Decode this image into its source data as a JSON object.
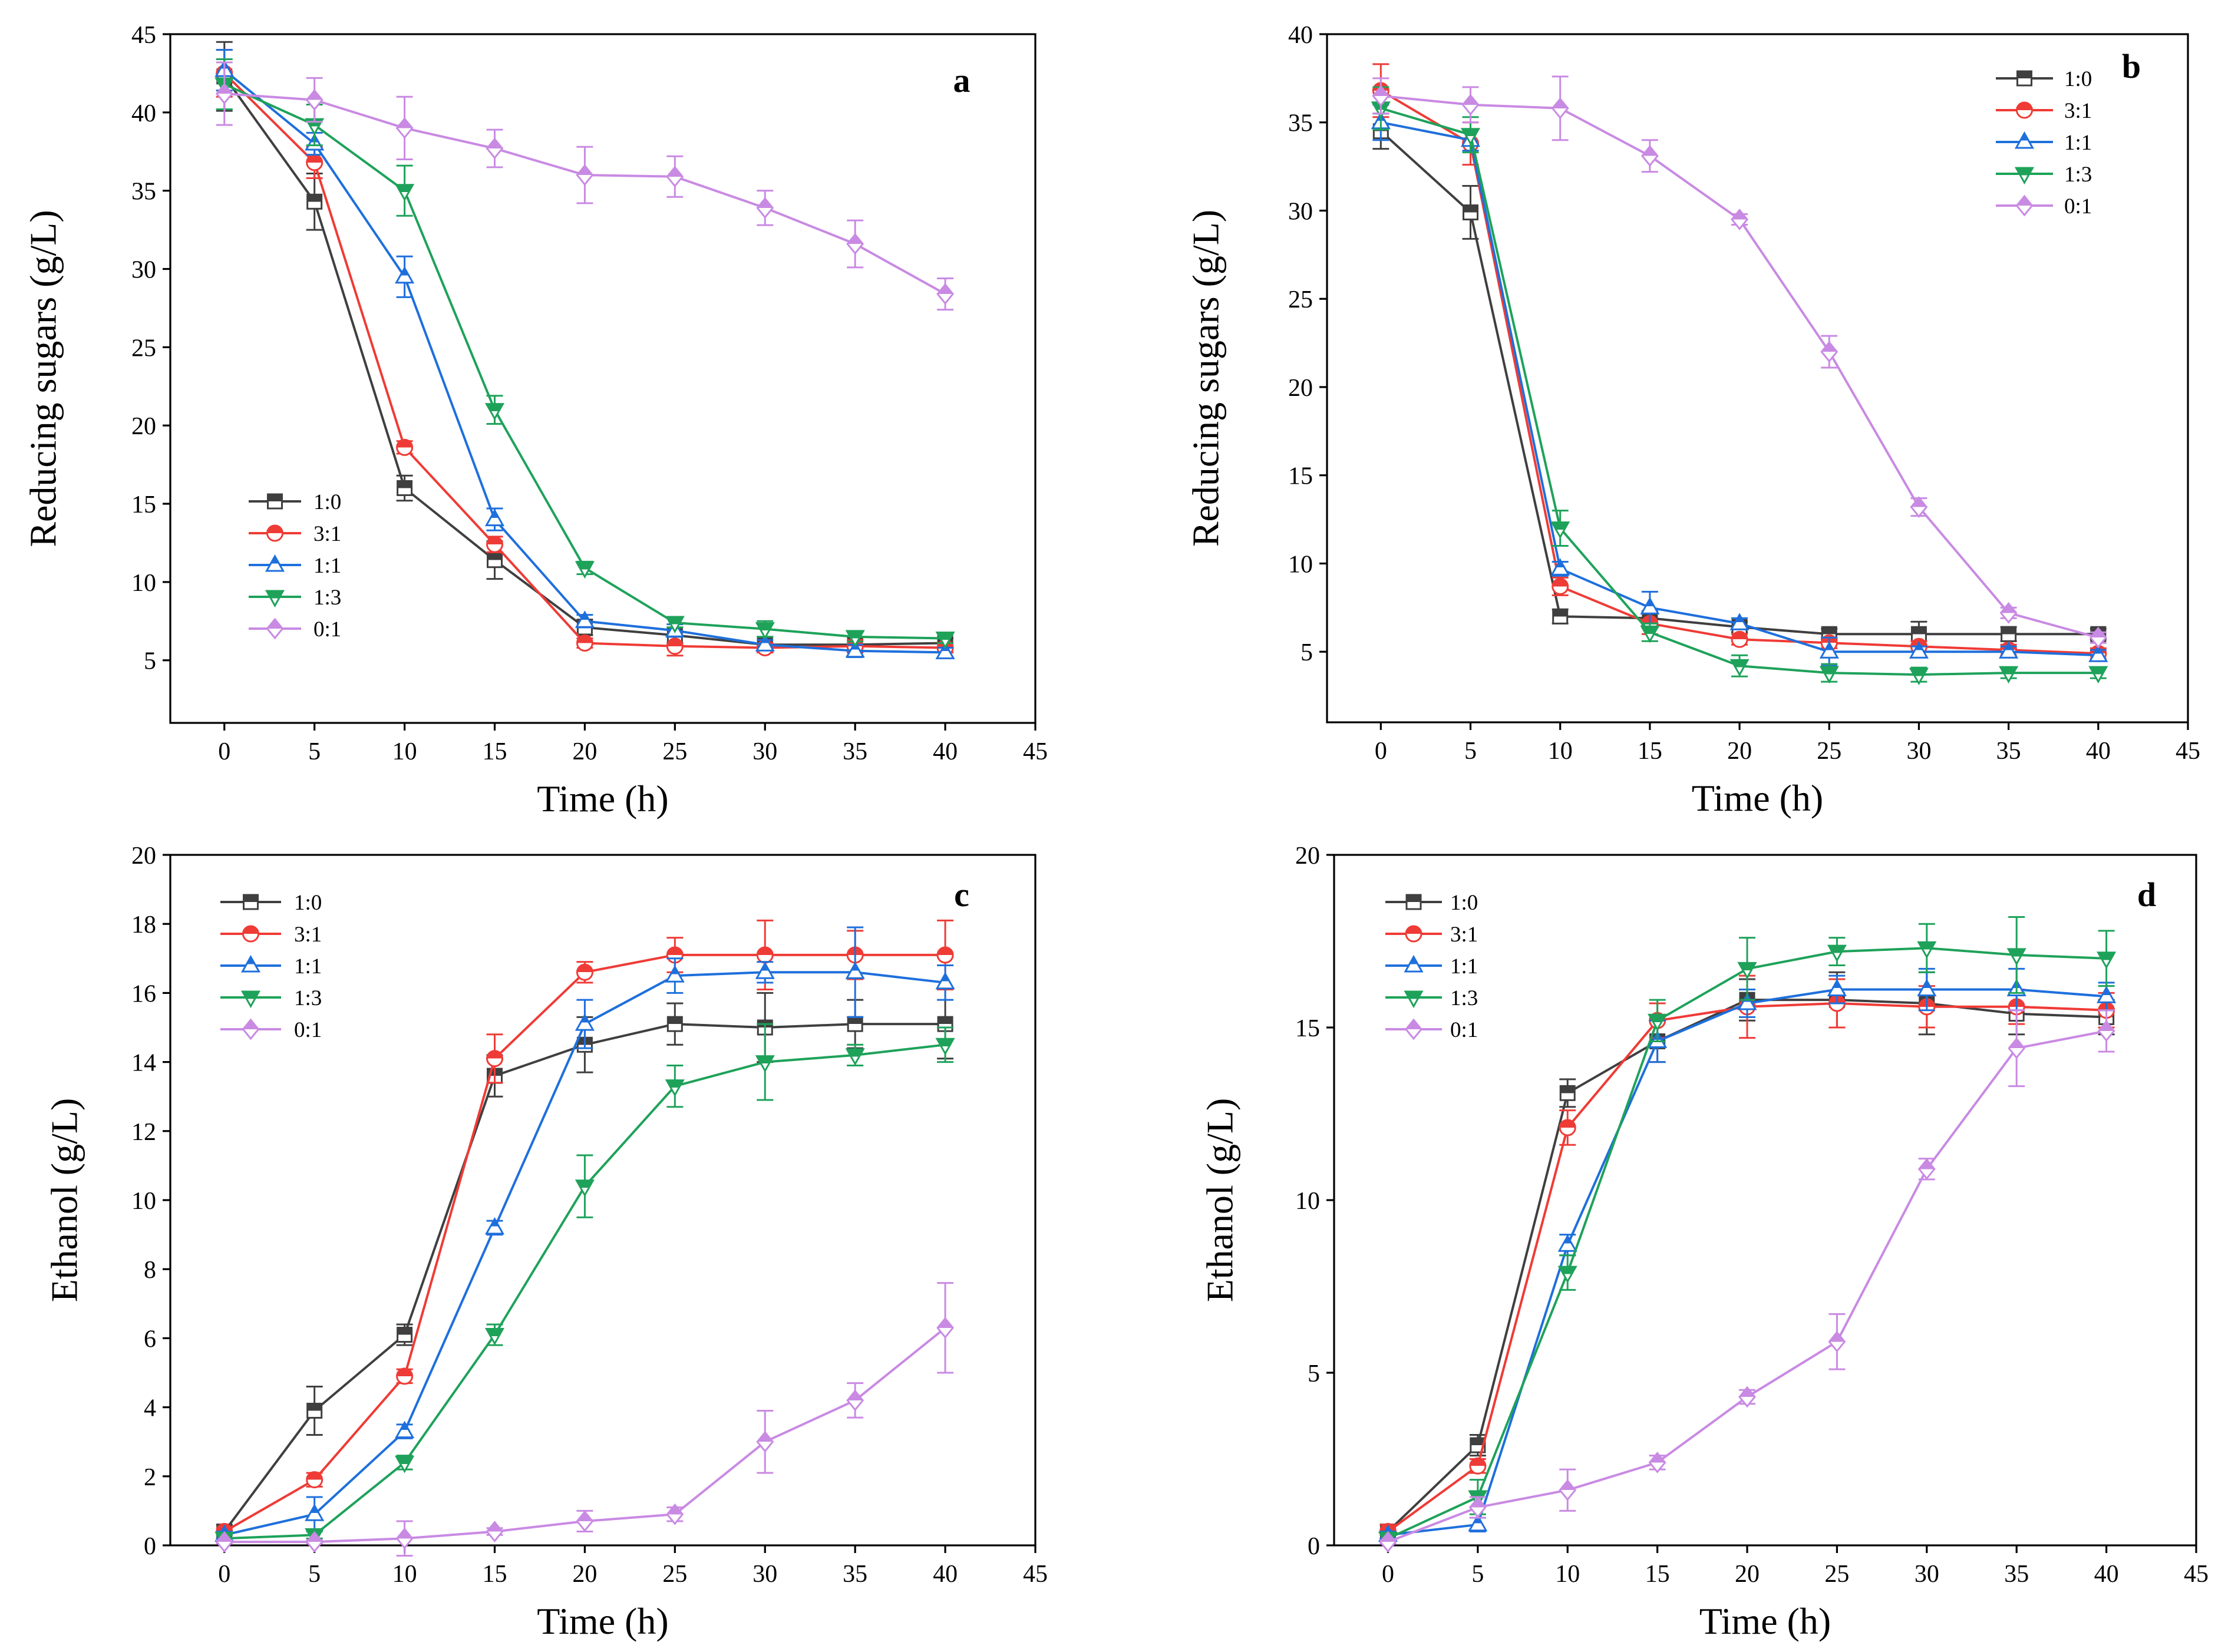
{
  "chart_data": [
    {
      "panel": "a",
      "type": "line",
      "xlabel": "Time (h)",
      "ylabel": "Reducing sugars (g/L)",
      "xlim": [
        -3,
        45
      ],
      "ylim": [
        1,
        45
      ],
      "xticks": [
        0,
        5,
        10,
        15,
        20,
        25,
        30,
        35,
        40,
        45
      ],
      "yticks": [
        5,
        10,
        15,
        20,
        25,
        30,
        35,
        40,
        45
      ],
      "grid": false,
      "legend_position": "bottom-left",
      "x": [
        0,
        5,
        10,
        15,
        20,
        25,
        30,
        35,
        40
      ],
      "series": [
        {
          "name": "1:0",
          "color": "#3f3f3f",
          "marker": "square",
          "values": [
            42.3,
            34.3,
            16.0,
            11.4,
            7.1,
            6.6,
            6.0,
            6.0,
            6.1
          ],
          "errors": [
            2.2,
            1.8,
            0.8,
            1.2,
            0.5,
            0.5,
            0.5,
            0.5,
            0.3
          ]
        },
        {
          "name": "3:1",
          "color": "#ef3b36",
          "marker": "circle",
          "values": [
            42.5,
            36.8,
            18.6,
            12.4,
            6.1,
            5.9,
            5.8,
            5.9,
            5.8
          ],
          "errors": [
            1.5,
            1.0,
            0.4,
            0.5,
            0.3,
            0.6,
            0.3,
            0.4,
            0.3
          ]
        },
        {
          "name": "1:1",
          "color": "#1e6fdc",
          "marker": "triangle-up",
          "values": [
            42.7,
            38.0,
            29.5,
            14.0,
            7.5,
            6.9,
            6.0,
            5.6,
            5.5
          ],
          "errors": [
            1.3,
            0.7,
            1.3,
            0.7,
            0.4,
            0.4,
            0.3,
            0.4,
            0.3
          ]
        },
        {
          "name": "1:3",
          "color": "#1ea25a",
          "marker": "triangle-down",
          "values": [
            41.8,
            39.2,
            35.0,
            21.0,
            10.9,
            7.4,
            7.0,
            6.5,
            6.4
          ],
          "errors": [
            1.6,
            1.3,
            1.6,
            0.9,
            0.4,
            0.3,
            0.5,
            0.3,
            0.3
          ]
        },
        {
          "name": "0:1",
          "color": "#c98ae3",
          "marker": "diamond",
          "values": [
            41.2,
            40.8,
            39.0,
            37.7,
            36.0,
            35.9,
            33.9,
            31.6,
            28.4
          ],
          "errors": [
            2.0,
            1.4,
            2.0,
            1.2,
            1.8,
            1.3,
            1.1,
            1.5,
            1.0
          ]
        }
      ]
    },
    {
      "panel": "b",
      "type": "line",
      "xlabel": "Time (h)",
      "ylabel": "Reducing sugars (g/L)",
      "xlim": [
        -3,
        45
      ],
      "ylim": [
        1,
        40
      ],
      "xticks": [
        0,
        5,
        10,
        15,
        20,
        25,
        30,
        35,
        40,
        45
      ],
      "yticks": [
        5,
        10,
        15,
        20,
        25,
        30,
        35,
        40
      ],
      "grid": false,
      "legend_position": "top-right",
      "x": [
        0,
        5,
        10,
        15,
        20,
        25,
        30,
        35,
        40
      ],
      "series": [
        {
          "name": "1:0",
          "color": "#3f3f3f",
          "marker": "square",
          "values": [
            34.5,
            29.9,
            7.0,
            6.9,
            6.4,
            6.0,
            6.0,
            6.0,
            6.0
          ],
          "errors": [
            1.0,
            1.5,
            0.4,
            0.4,
            0.3,
            0.3,
            0.7,
            0.4,
            0.3
          ]
        },
        {
          "name": "3:1",
          "color": "#ef3b36",
          "marker": "circle",
          "values": [
            36.8,
            33.8,
            8.7,
            6.6,
            5.7,
            5.5,
            5.3,
            5.1,
            4.9
          ],
          "errors": [
            1.5,
            1.2,
            0.5,
            0.6,
            0.3,
            0.3,
            0.3,
            0.3,
            0.3
          ]
        },
        {
          "name": "1:1",
          "color": "#1e6fdc",
          "marker": "triangle-up",
          "values": [
            35.0,
            34.0,
            9.7,
            7.5,
            6.6,
            5.0,
            5.0,
            5.0,
            4.8
          ],
          "errors": [
            1.0,
            0.6,
            0.4,
            0.9,
            0.3,
            0.8,
            0.3,
            0.3,
            0.3
          ]
        },
        {
          "name": "1:3",
          "color": "#1ea25a",
          "marker": "triangle-down",
          "values": [
            35.8,
            34.3,
            12.0,
            6.1,
            4.2,
            3.8,
            3.7,
            3.8,
            3.8
          ],
          "errors": [
            1.2,
            1.0,
            1.0,
            0.5,
            0.6,
            0.5,
            0.4,
            0.3,
            0.3
          ]
        },
        {
          "name": "0:1",
          "color": "#c98ae3",
          "marker": "diamond",
          "values": [
            36.5,
            36.0,
            35.8,
            33.1,
            29.5,
            22.0,
            13.2,
            7.2,
            5.8
          ],
          "errors": [
            1.0,
            1.0,
            1.8,
            0.9,
            0.3,
            0.9,
            0.5,
            0.3,
            0.3
          ]
        }
      ]
    },
    {
      "panel": "c",
      "type": "line",
      "xlabel": "Time (h)",
      "ylabel": "Ethanol (g/L)",
      "xlim": [
        -3,
        45
      ],
      "ylim": [
        0,
        20
      ],
      "xticks": [
        0,
        5,
        10,
        15,
        20,
        25,
        30,
        35,
        40,
        45
      ],
      "yticks": [
        0,
        2,
        4,
        6,
        8,
        10,
        12,
        14,
        16,
        18,
        20
      ],
      "grid": false,
      "legend_position": "top-left",
      "x": [
        0,
        5,
        10,
        15,
        20,
        25,
        30,
        35,
        40
      ],
      "series": [
        {
          "name": "1:0",
          "color": "#3f3f3f",
          "marker": "square",
          "values": [
            0.4,
            3.9,
            6.1,
            13.6,
            14.5,
            15.1,
            15.0,
            15.1,
            15.1
          ],
          "errors": [
            0.2,
            0.7,
            0.3,
            0.6,
            0.8,
            0.6,
            1.0,
            0.7,
            1.0
          ]
        },
        {
          "name": "3:1",
          "color": "#ef3b36",
          "marker": "circle",
          "values": [
            0.4,
            1.9,
            4.9,
            14.1,
            16.6,
            17.1,
            17.1,
            17.1,
            17.1
          ],
          "errors": [
            0.1,
            0.2,
            0.2,
            0.7,
            0.3,
            0.5,
            1.0,
            0.7,
            1.0
          ]
        },
        {
          "name": "1:1",
          "color": "#1e6fdc",
          "marker": "triangle-up",
          "values": [
            0.3,
            0.9,
            3.3,
            9.2,
            15.1,
            16.5,
            16.6,
            16.6,
            16.3
          ],
          "errors": [
            0.1,
            0.5,
            0.2,
            0.2,
            0.7,
            0.5,
            0.3,
            1.3,
            0.5
          ]
        },
        {
          "name": "1:3",
          "color": "#1ea25a",
          "marker": "triangle-down",
          "values": [
            0.2,
            0.3,
            2.4,
            6.1,
            10.4,
            13.3,
            14.0,
            14.2,
            14.5
          ],
          "errors": [
            0.1,
            0.1,
            0.2,
            0.3,
            0.9,
            0.6,
            1.1,
            0.3,
            0.5
          ]
        },
        {
          "name": "0:1",
          "color": "#c98ae3",
          "marker": "diamond",
          "values": [
            0.1,
            0.1,
            0.2,
            0.4,
            0.7,
            0.9,
            3.0,
            4.2,
            6.3
          ],
          "errors": [
            0.05,
            0.05,
            0.5,
            0.1,
            0.3,
            0.2,
            0.9,
            0.5,
            1.3
          ]
        }
      ]
    },
    {
      "panel": "d",
      "type": "line",
      "xlabel": "Time (h)",
      "ylabel": "Ethanol (g/L)",
      "xlim": [
        -3,
        45
      ],
      "ylim": [
        0,
        20
      ],
      "xticks": [
        0,
        5,
        10,
        15,
        20,
        25,
        30,
        35,
        40,
        45
      ],
      "yticks": [
        0,
        5,
        10,
        15,
        20
      ],
      "grid": false,
      "legend_position": "top-left",
      "x": [
        0,
        5,
        10,
        15,
        20,
        25,
        30,
        35,
        40
      ],
      "series": [
        {
          "name": "1:0",
          "color": "#3f3f3f",
          "marker": "square",
          "values": [
            0.4,
            2.9,
            13.1,
            14.6,
            15.8,
            15.8,
            15.7,
            15.4,
            15.3
          ],
          "errors": [
            0.2,
            0.3,
            0.4,
            0.6,
            0.6,
            0.8,
            0.9,
            0.6,
            0.5
          ]
        },
        {
          "name": "3:1",
          "color": "#ef3b36",
          "marker": "circle",
          "values": [
            0.4,
            2.3,
            12.1,
            15.2,
            15.6,
            15.7,
            15.6,
            15.6,
            15.5
          ],
          "errors": [
            0.2,
            0.2,
            0.5,
            0.5,
            0.9,
            0.7,
            0.6,
            0.5,
            0.5
          ]
        },
        {
          "name": "1:1",
          "color": "#1e6fdc",
          "marker": "triangle-up",
          "values": [
            0.3,
            0.6,
            8.7,
            14.6,
            15.7,
            16.1,
            16.1,
            16.1,
            15.9
          ],
          "errors": [
            0.1,
            0.2,
            0.3,
            0.6,
            0.4,
            0.4,
            0.6,
            0.6,
            0.4
          ]
        },
        {
          "name": "1:3",
          "color": "#1ea25a",
          "marker": "triangle-down",
          "values": [
            0.2,
            1.4,
            7.9,
            15.2,
            16.7,
            17.2,
            17.3,
            17.1,
            17.0
          ],
          "errors": [
            0.1,
            0.5,
            0.5,
            0.6,
            0.9,
            0.4,
            0.7,
            1.1,
            0.8
          ]
        },
        {
          "name": "0:1",
          "color": "#c98ae3",
          "marker": "diamond",
          "values": [
            0.1,
            1.1,
            1.6,
            2.4,
            4.3,
            5.9,
            10.9,
            14.4,
            14.9
          ],
          "errors": [
            0.05,
            0.3,
            0.6,
            0.2,
            0.2,
            0.8,
            0.3,
            1.1,
            0.6
          ]
        }
      ]
    }
  ]
}
